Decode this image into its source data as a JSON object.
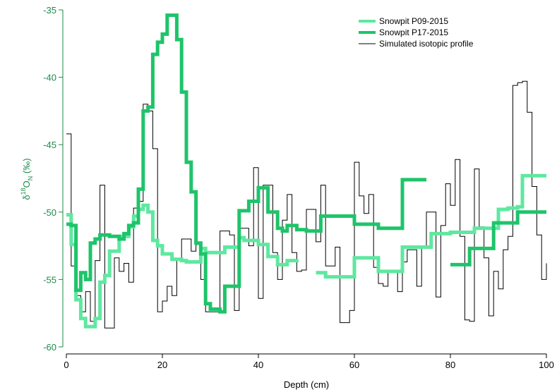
{
  "chart_data": {
    "type": "line",
    "step": true,
    "xlabel": "Depth (cm)",
    "ylabel_parts": {
      "delta": "δ",
      "sup": "18",
      "main": "O",
      "sub": "N",
      "unit": " (‰)"
    },
    "xlim": [
      0,
      100
    ],
    "ylim": [
      -60,
      -35
    ],
    "xticks": [
      0,
      20,
      40,
      60,
      80,
      100
    ],
    "yticks": [
      -60,
      -55,
      -50,
      -45,
      -40,
      -35
    ],
    "xtick_labels": [
      "0",
      "20",
      "40",
      "60",
      "80",
      "100"
    ],
    "ytick_labels": [
      "-60",
      "-55",
      "-50",
      "-45",
      "-40",
      "-35"
    ],
    "grid": false,
    "legend_position": "top-right",
    "colors": {
      "axis_y": "#1e8a4a",
      "axis_x": "#000000",
      "p09": "#5ee8a0",
      "p17": "#1ec46a",
      "sim": "#000000"
    },
    "series": [
      {
        "name": "Snowpit P09-2015",
        "color": "#5ee8a0",
        "width": 5,
        "segments": [
          [
            [
              0,
              -50.2
            ],
            [
              1,
              -52.4
            ],
            [
              2,
              -56.5
            ],
            [
              3,
              -57.9
            ],
            [
              4,
              -58.5
            ],
            [
              6,
              -57.9
            ],
            [
              7,
              -55.2
            ],
            [
              8,
              -54.7
            ],
            [
              9,
              -52.9
            ],
            [
              11,
              -51.8
            ],
            [
              12,
              -51.8
            ],
            [
              13,
              -51.1
            ],
            [
              14,
              -50.3
            ],
            [
              15,
              -49.8
            ],
            [
              16,
              -49.5
            ],
            [
              17,
              -50.0
            ],
            [
              18,
              -52.1
            ],
            [
              19,
              -52.5
            ],
            [
              20,
              -53.1
            ],
            [
              22,
              -53.5
            ],
            [
              24,
              -53.6
            ],
            [
              25,
              -53.7
            ],
            [
              28,
              -52.7
            ],
            [
              29,
              -53.0
            ],
            [
              31,
              -53.0
            ],
            [
              33,
              -52.6
            ],
            [
              36,
              -51.9
            ],
            [
              37,
              -52.1
            ],
            [
              40,
              -52.4
            ],
            [
              42,
              -53.3
            ],
            [
              44,
              -53.9
            ],
            [
              46,
              -53.6
            ],
            [
              48,
              -53.5
            ]
          ],
          [
            [
              52,
              -54.5
            ],
            [
              54,
              -54.8
            ],
            [
              57,
              -54.8
            ],
            [
              60,
              -53.4
            ],
            [
              63,
              -53.4
            ],
            [
              65,
              -54.4
            ],
            [
              70,
              -52.6
            ],
            [
              75,
              -52.6
            ],
            [
              76,
              -51.6
            ],
            [
              80,
              -51.5
            ],
            [
              85,
              -51.2
            ],
            [
              88,
              -51.2
            ],
            [
              90,
              -49.8
            ],
            [
              92,
              -49.7
            ],
            [
              94,
              -49.6
            ],
            [
              95,
              -47.3
            ],
            [
              100,
              -47.3
            ]
          ]
        ]
      },
      {
        "name": "Snowpit P17-2015",
        "color": "#1ec46a",
        "width": 5,
        "segments": [
          [
            [
              0,
              -50.9
            ],
            [
              1,
              -51.0
            ],
            [
              2,
              -55.8
            ],
            [
              3,
              -54.5
            ],
            [
              4,
              -55.0
            ],
            [
              5,
              -52.3
            ],
            [
              6,
              -52.0
            ],
            [
              7,
              -51.7
            ],
            [
              8,
              -51.7
            ],
            [
              9,
              -51.8
            ],
            [
              11,
              -52.0
            ],
            [
              12,
              -51.6
            ],
            [
              13,
              -51.0
            ],
            [
              14,
              -50.8
            ],
            [
              15,
              -48.3
            ],
            [
              16,
              -42.5
            ],
            [
              17,
              -42.2
            ],
            [
              18,
              -38.3
            ],
            [
              19,
              -37.4
            ],
            [
              20,
              -36.8
            ],
            [
              21,
              -35.4
            ],
            [
              22,
              -35.4
            ],
            [
              23,
              -37.2
            ],
            [
              24,
              -41.1
            ],
            [
              25,
              -46.3
            ],
            [
              26,
              -48.5
            ],
            [
              27,
              -52.3
            ],
            [
              28,
              -53.1
            ],
            [
              29,
              -56.8
            ],
            [
              30,
              -57.2
            ],
            [
              32,
              -57.4
            ],
            [
              33,
              -55.5
            ],
            [
              35,
              -55.5
            ],
            [
              36,
              -49.9
            ],
            [
              38,
              -49.2
            ],
            [
              40,
              -48.2
            ],
            [
              42,
              -50.0
            ],
            [
              44,
              -51.2
            ],
            [
              45,
              -51.4
            ],
            [
              46,
              -51.0
            ],
            [
              48,
              -51.3
            ],
            [
              50,
              -51.4
            ],
            [
              53,
              -50.3
            ],
            [
              56,
              -50.3
            ],
            [
              60,
              -50.9
            ],
            [
              63,
              -50.9
            ],
            [
              65,
              -51.2
            ],
            [
              69,
              -51.2
            ],
            [
              70,
              -47.6
            ],
            [
              75,
              -47.6
            ]
          ],
          [
            [
              80,
              -53.9
            ],
            [
              82,
              -53.9
            ],
            [
              84,
              -52.7
            ],
            [
              87,
              -52.7
            ],
            [
              89,
              -50.8
            ],
            [
              91,
              -50.8
            ],
            [
              94,
              -50.0
            ],
            [
              100,
              -50.0
            ]
          ]
        ]
      },
      {
        "name": "Simulated isotopic profile",
        "color": "#000000",
        "width": 1,
        "segments": [
          [
            [
              0,
              -44.2
            ],
            [
              1,
              -54.0
            ],
            [
              2,
              -56.2
            ],
            [
              3,
              -57.4
            ],
            [
              4,
              -55.9
            ],
            [
              5,
              -58.1
            ],
            [
              6,
              -53.6
            ],
            [
              7,
              -48.0
            ],
            [
              8,
              -58.6
            ],
            [
              9,
              -58.6
            ],
            [
              10,
              -53.4
            ],
            [
              11,
              -54.4
            ],
            [
              12,
              -53.8
            ],
            [
              13,
              -55.2
            ],
            [
              14,
              -49.7
            ],
            [
              15,
              -49.2
            ],
            [
              16,
              -42.0
            ],
            [
              17,
              -42.5
            ],
            [
              18,
              -45.3
            ],
            [
              19,
              -57.4
            ],
            [
              20,
              -56.6
            ],
            [
              21,
              -55.5
            ],
            [
              22,
              -56.2
            ],
            [
              23,
              -53.5
            ],
            [
              24,
              -52.0
            ],
            [
              26,
              -52.9
            ],
            [
              27,
              -52.4
            ],
            [
              28,
              -55.0
            ],
            [
              29,
              -57.4
            ],
            [
              31,
              -57.4
            ],
            [
              32,
              -51.4
            ],
            [
              34,
              -51.7
            ],
            [
              35,
              -57.3
            ],
            [
              36,
              -51.2
            ],
            [
              38,
              -52.5
            ],
            [
              39,
              -46.7
            ],
            [
              40,
              -56.4
            ],
            [
              41,
              -48.0
            ],
            [
              43,
              -53.0
            ],
            [
              44,
              -55.0
            ],
            [
              45,
              -50.6
            ],
            [
              46,
              -48.7
            ],
            [
              47,
              -53.0
            ],
            [
              48,
              -54.4
            ],
            [
              49,
              -54.3
            ],
            [
              50,
              -49.8
            ],
            [
              52,
              -52.2
            ],
            [
              53,
              -48.0
            ],
            [
              54,
              -54.0
            ],
            [
              56,
              -52.6
            ],
            [
              57,
              -58.2
            ],
            [
              59,
              -57.3
            ],
            [
              60,
              -46.3
            ],
            [
              61,
              -48.8
            ],
            [
              62,
              -50.1
            ],
            [
              63,
              -48.7
            ],
            [
              64,
              -54.1
            ],
            [
              65,
              -55.3
            ],
            [
              66,
              -55.5
            ],
            [
              67,
              -54.4
            ],
            [
              69,
              -55.9
            ],
            [
              70,
              -53.7
            ],
            [
              71,
              -52.8
            ],
            [
              73,
              -55.5
            ],
            [
              74,
              -52.5
            ],
            [
              75,
              -50.0
            ],
            [
              77,
              -56.3
            ],
            [
              78,
              -51.0
            ],
            [
              79,
              -47.9
            ],
            [
              80,
              -49.5
            ],
            [
              81,
              -46.1
            ],
            [
              82,
              -51.8
            ],
            [
              83,
              -58.0
            ],
            [
              84,
              -58.1
            ],
            [
              85,
              -46.8
            ],
            [
              86,
              -51.1
            ],
            [
              87,
              -53.4
            ],
            [
              88,
              -57.7
            ],
            [
              89,
              -54.4
            ],
            [
              90,
              -55.7
            ],
            [
              91,
              -52.8
            ],
            [
              92,
              -51.8
            ],
            [
              93,
              -40.6
            ],
            [
              94,
              -40.4
            ],
            [
              95,
              -40.3
            ],
            [
              96,
              -42.6
            ],
            [
              97,
              -48.1
            ],
            [
              98,
              -51.7
            ],
            [
              99,
              -55.0
            ],
            [
              100,
              -53.8
            ]
          ]
        ]
      }
    ]
  }
}
